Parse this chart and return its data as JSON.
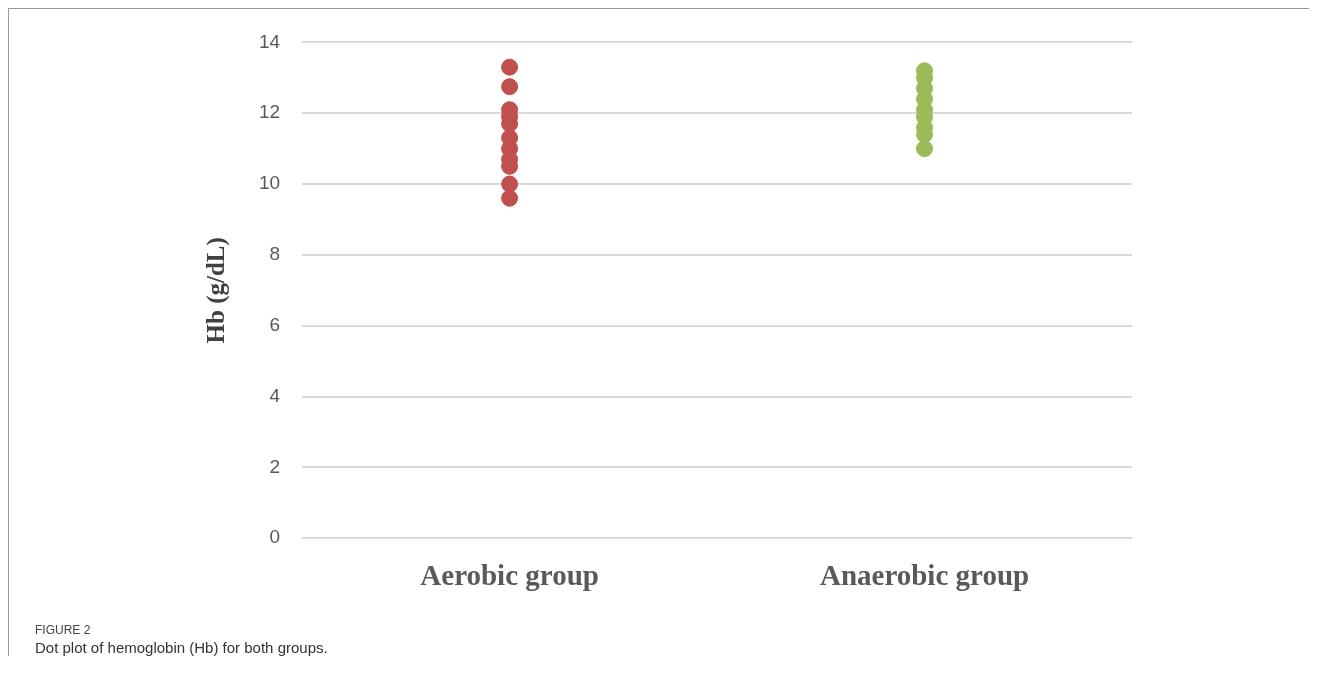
{
  "chart_data": {
    "type": "scatter",
    "ylabel": "Hb (g/dL)",
    "categories": [
      "Aerobic group",
      "Anaerobic group"
    ],
    "series": [
      {
        "color": "#c0504d",
        "x": [
          "Aerobic group",
          "Aerobic group",
          "Aerobic group",
          "Aerobic group",
          "Aerobic group",
          "Aerobic group",
          "Aerobic group",
          "Aerobic group",
          "Aerobic group",
          "Aerobic group",
          "Aerobic group"
        ],
        "values": [
          13.3,
          12.75,
          12.1,
          11.9,
          11.7,
          11.3,
          11.0,
          10.7,
          10.5,
          10.0,
          9.6
        ]
      },
      {
        "color": "#9bbb59",
        "x": [
          "Anaerobic group",
          "Anaerobic group",
          "Anaerobic group",
          "Anaerobic group",
          "Anaerobic group",
          "Anaerobic group",
          "Anaerobic group",
          "Anaerobic group",
          "Anaerobic group"
        ],
        "values": [
          13.2,
          13.0,
          12.7,
          12.4,
          12.1,
          11.9,
          11.6,
          11.4,
          11.0
        ]
      }
    ],
    "ylim": [
      0,
      14
    ],
    "yticks": [
      0,
      2,
      4,
      6,
      8,
      10,
      12,
      14
    ],
    "grid": "y",
    "legend": false,
    "marker": "circle",
    "annotations": [
      "FIGURE 2",
      "Dot plot of hemoglobin (Hb) for both groups."
    ]
  }
}
